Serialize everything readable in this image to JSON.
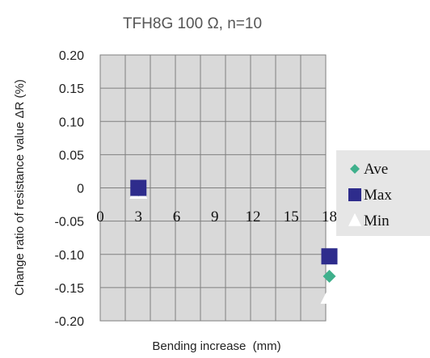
{
  "chart_data": {
    "type": "scatter",
    "title": "TFH8G 100 Ω, n=10",
    "xlabel": "Bending increase  (mm)",
    "ylabel": "Change ratio of resistance value ΔR (%)",
    "xlim": [
      0,
      20
    ],
    "ylim": [
      -0.2,
      0.2
    ],
    "x_ticks": [
      "0",
      "3",
      "6",
      "9",
      "12",
      "15",
      "18"
    ],
    "x_tick_values": [
      0,
      3,
      6,
      9,
      12,
      15,
      18
    ],
    "y_ticks": [
      "0.20",
      "0.15",
      "0.10",
      "0.05",
      "0",
      "-0.05",
      "-0.10",
      "-0.15",
      "-0.20"
    ],
    "y_tick_values": [
      0.2,
      0.15,
      0.1,
      0.05,
      0,
      -0.05,
      -0.1,
      -0.15,
      -0.2
    ],
    "grid": true,
    "legend_position": "right",
    "series": [
      {
        "name": "Ave",
        "marker": "diamond",
        "color": "#3fb08c",
        "x": [
          3,
          18
        ],
        "y": [
          -0.003,
          -0.133
        ]
      },
      {
        "name": "Max",
        "marker": "square",
        "color": "#2e2c8c",
        "x": [
          3,
          18
        ],
        "y": [
          0.0,
          -0.103
        ]
      },
      {
        "name": "Min",
        "marker": "triangle",
        "color": "#ffffff",
        "x": [
          3,
          18
        ],
        "y": [
          -0.005,
          -0.163
        ]
      }
    ],
    "colors": {
      "plot_bg": "#d9d9d9",
      "grid": "#7f7f7f",
      "legend_bg": "#e6e6e6"
    }
  }
}
